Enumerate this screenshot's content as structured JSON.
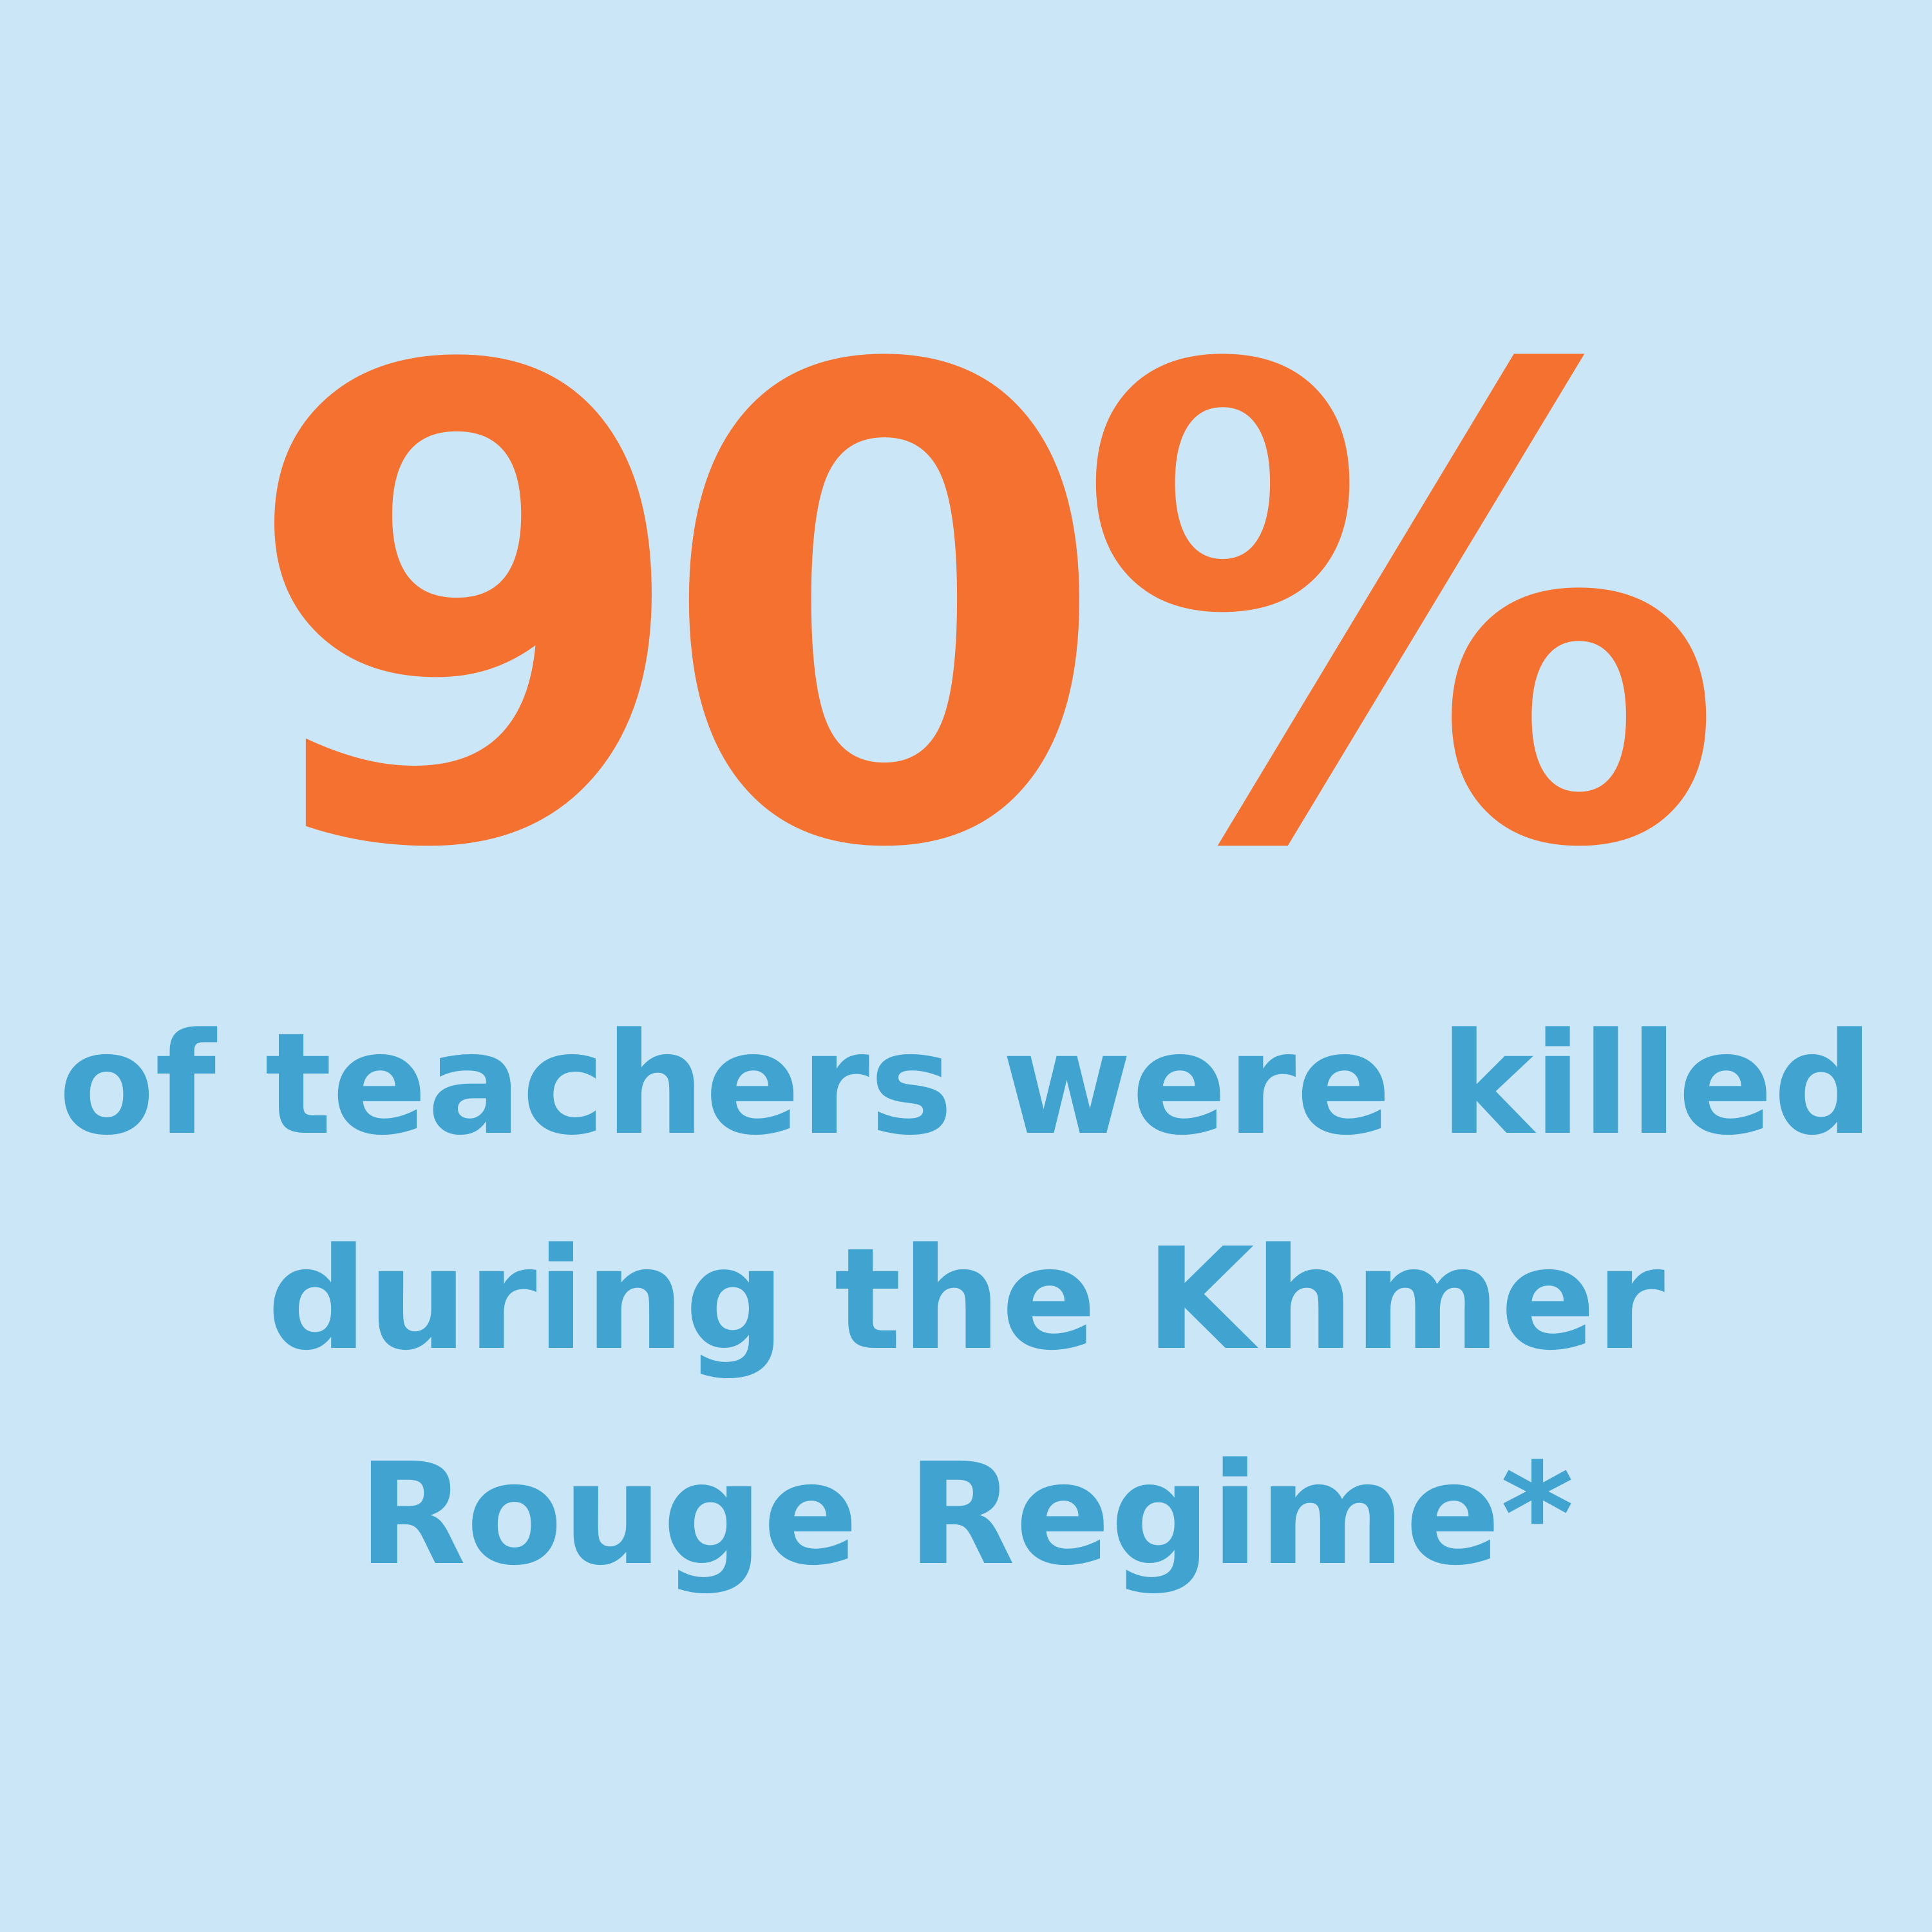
{
  "colors": {
    "background": "#cbe7f7",
    "statistic": "#f5712f",
    "caption": "#41a4d0"
  },
  "statistic": {
    "value": "90%"
  },
  "caption": {
    "lines": [
      "of teachers were killed",
      "during the Khmer",
      "Rouge Regime*"
    ]
  }
}
